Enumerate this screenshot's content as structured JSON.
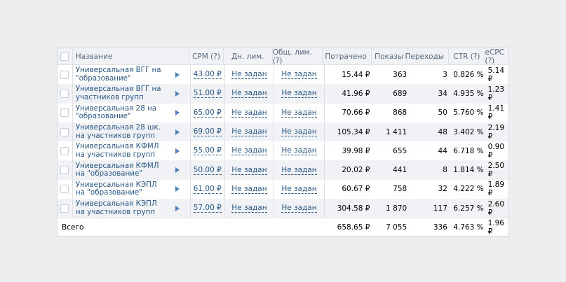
{
  "header": {
    "name": "Название",
    "cpm": "CPM (?)",
    "dn_lim": "Дн. лим.",
    "ob_lim": "Общ. лим. (?)",
    "spent": "Потрачено",
    "shows": "Показы",
    "clicks": "Переходы",
    "ctr": "CTR (?)",
    "ecpc": "eCPC (?)"
  },
  "rows": [
    {
      "name": "Универсальная ВГГ на \"образование\"",
      "cpm": "43.00 ₽",
      "dn": "Не задан",
      "ob": "Не задан",
      "spent": "15.44 ₽",
      "shows": "363",
      "clicks": "3",
      "ctr": "0.826 %",
      "ecpc": "5.14 ₽"
    },
    {
      "name": "Универсальная ВГГ на участников групп",
      "cpm": "51.00 ₽",
      "dn": "Не задан",
      "ob": "Не задан",
      "spent": "41.96 ₽",
      "shows": "689",
      "clicks": "34",
      "ctr": "4.935 %",
      "ecpc": "1.23 ₽"
    },
    {
      "name": "Универсальная 28 на \"образование\"",
      "cpm": "65.00 ₽",
      "dn": "Не задан",
      "ob": "Не задан",
      "spent": "70.66 ₽",
      "shows": "868",
      "clicks": "50",
      "ctr": "5.760 %",
      "ecpc": "1.41 ₽"
    },
    {
      "name": "Универсальная 28 шк. на участников групп",
      "cpm": "69.00 ₽",
      "dn": "Не задан",
      "ob": "Не задан",
      "spent": "105.34 ₽",
      "shows": "1 411",
      "clicks": "48",
      "ctr": "3.402 %",
      "ecpc": "2.19 ₽"
    },
    {
      "name": "Универсальная КФМЛ на участников групп",
      "cpm": "55.00 ₽",
      "dn": "Не задан",
      "ob": "Не задан",
      "spent": "39.98 ₽",
      "shows": "655",
      "clicks": "44",
      "ctr": "6.718 %",
      "ecpc": "0.90 ₽"
    },
    {
      "name": "Универсальная КФМЛ на \"образование\"",
      "cpm": "50.00 ₽",
      "dn": "Не задан",
      "ob": "Не задан",
      "spent": "20.02 ₽",
      "shows": "441",
      "clicks": "8",
      "ctr": "1.814 %",
      "ecpc": "2.50 ₽"
    },
    {
      "name": "Универсальная КЭПЛ на \"образование\"",
      "cpm": "61.00 ₽",
      "dn": "Не задан",
      "ob": "Не задан",
      "spent": "60.67 ₽",
      "shows": "758",
      "clicks": "32",
      "ctr": "4.222 %",
      "ecpc": "1.89 ₽"
    },
    {
      "name": "Универсальная КЭПЛ на участников групп",
      "cpm": "57.00 ₽",
      "dn": "Не задан",
      "ob": "Не задан",
      "spent": "304.58 ₽",
      "shows": "1 870",
      "clicks": "117",
      "ctr": "6.257 %",
      "ecpc": "2.60 ₽"
    }
  ],
  "total": {
    "label": "Всего",
    "spent": "658.65 ₽",
    "shows": "7 055",
    "clicks": "336",
    "ctr": "4.763 %",
    "ecpc": "1.96 ₽"
  },
  "icons": {
    "expand": "play-triangle-icon",
    "checkbox": "checkbox-icon"
  },
  "colors": {
    "link": "#2a5885",
    "accent": "#5181b8",
    "background": "#edeef0",
    "alt_row": "#f0f2f5"
  }
}
